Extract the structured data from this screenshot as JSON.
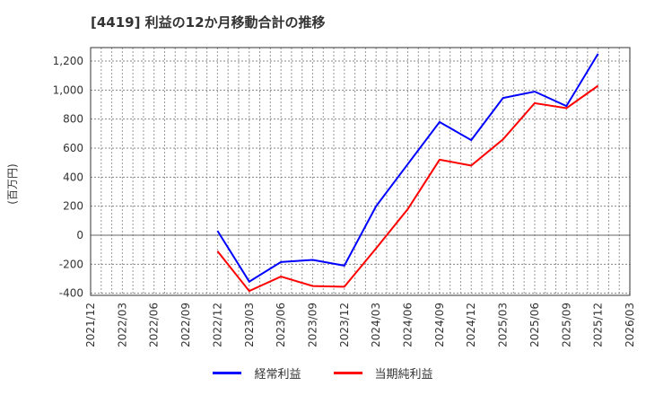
{
  "chart_data": {
    "type": "line",
    "title": "[4419]  利益の12か月移動合計の推移",
    "xlabel": "",
    "ylabel": "(百万円)",
    "ylim": [
      -420,
      1290
    ],
    "yticks": [
      -400,
      -200,
      0,
      200,
      400,
      600,
      800,
      1000,
      1200
    ],
    "ytick_labels": [
      "-400",
      "-200",
      "0",
      "200",
      "400",
      "600",
      "800",
      "1,000",
      "1,200"
    ],
    "categories": [
      "2021/12",
      "2022/03",
      "2022/06",
      "2022/09",
      "2022/12",
      "2023/03",
      "2023/06",
      "2023/09",
      "2023/12",
      "2024/03",
      "2024/06",
      "2024/09",
      "2024/12",
      "2025/03",
      "2025/06",
      "2025/09",
      "2025/12",
      "2026/03"
    ],
    "grid": true,
    "legend_position": "bottom",
    "series": [
      {
        "name": "経常利益",
        "color": "#0000ff",
        "values": [
          null,
          null,
          null,
          null,
          30,
          -320,
          -185,
          -170,
          -210,
          200,
          490,
          780,
          655,
          945,
          990,
          890,
          1250,
          null
        ]
      },
      {
        "name": "当期純利益",
        "color": "#ff0000",
        "values": [
          null,
          null,
          null,
          null,
          -110,
          -385,
          -285,
          -350,
          -355,
          -90,
          180,
          520,
          480,
          660,
          910,
          875,
          1030,
          null
        ]
      }
    ]
  }
}
